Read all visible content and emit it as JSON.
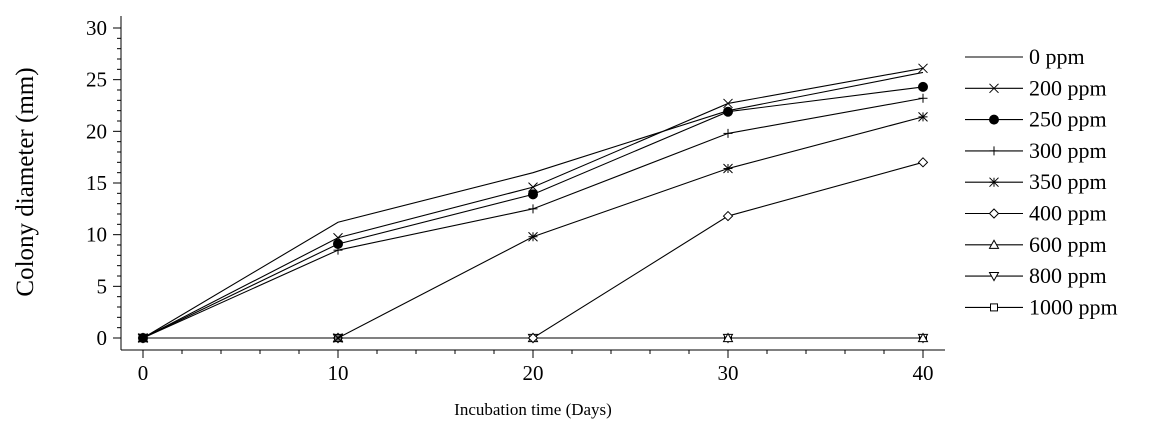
{
  "chart_data": {
    "type": "line",
    "title": "",
    "xlabel": "Incubation time (Days)",
    "ylabel": "Colony diameter (mm)",
    "x": [
      0,
      10,
      20,
      30,
      40
    ],
    "xlim": [
      0,
      40
    ],
    "ylim": [
      0,
      30
    ],
    "x_ticks": [
      "0",
      "10",
      "20",
      "30",
      "40"
    ],
    "y_ticks": [
      "0",
      "5",
      "10",
      "15",
      "20",
      "25",
      "30"
    ],
    "grid": false,
    "legend_position": "right",
    "series": [
      {
        "name": "0 ppm",
        "marker": "none",
        "values": [
          0,
          11.2,
          16.0,
          22.0,
          25.7
        ]
      },
      {
        "name": "200 ppm",
        "marker": "x",
        "values": [
          0,
          9.7,
          14.6,
          22.7,
          26.1
        ]
      },
      {
        "name": "250 ppm",
        "marker": "filled-circle",
        "values": [
          0,
          9.1,
          13.9,
          21.9,
          24.3
        ]
      },
      {
        "name": "300 ppm",
        "marker": "plus",
        "values": [
          0,
          8.5,
          12.5,
          19.8,
          23.2
        ]
      },
      {
        "name": "350 ppm",
        "marker": "asterisk",
        "values": [
          0,
          0,
          9.8,
          16.4,
          21.4
        ]
      },
      {
        "name": "400 ppm",
        "marker": "diamond",
        "values": [
          0,
          0,
          0,
          11.8,
          17.0
        ]
      },
      {
        "name": "600 ppm",
        "marker": "triangle-up",
        "values": [
          0,
          0,
          0,
          0,
          0
        ]
      },
      {
        "name": "800 ppm",
        "marker": "triangle-down",
        "values": [
          0,
          0,
          0,
          0,
          0
        ]
      },
      {
        "name": "1000 ppm",
        "marker": "square",
        "values": [
          0,
          0,
          0,
          0,
          0
        ]
      }
    ],
    "line_color": "#000000"
  }
}
